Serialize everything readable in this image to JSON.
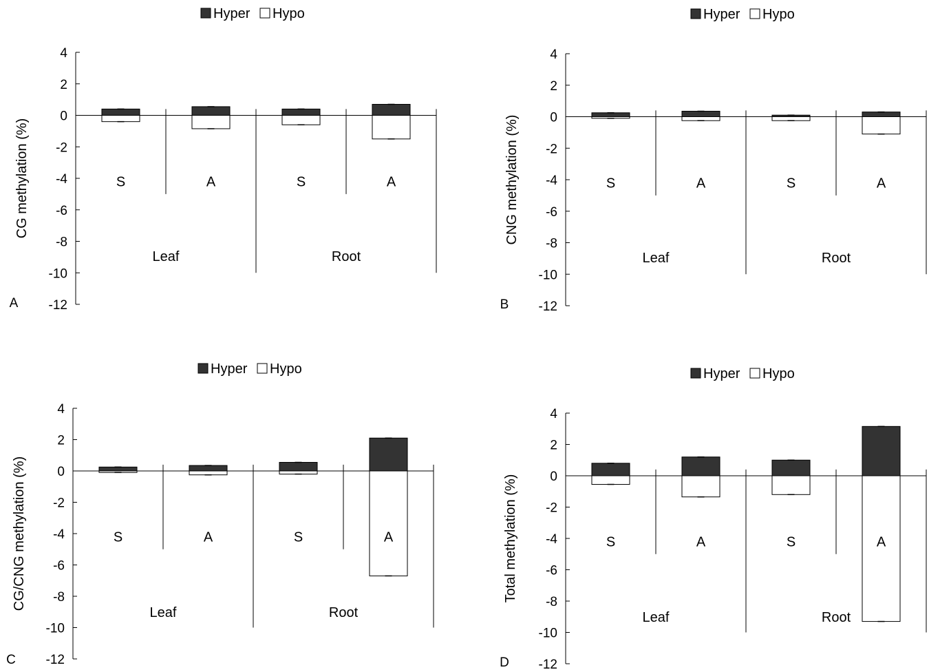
{
  "legend": {
    "hyper_label": "Hyper",
    "hypo_label": "Hypo"
  },
  "colors": {
    "hyper": "#333333",
    "hypo": "#ffffff",
    "axis": "#000000"
  },
  "chart_data": [
    {
      "type": "bar",
      "panel_label": "A",
      "ylabel": "CG methylation (%)",
      "ylim": [
        -12,
        4
      ],
      "yticks": [
        4,
        2,
        0,
        -2,
        -4,
        -6,
        -8,
        -10,
        -12
      ],
      "categories": [
        "S",
        "A",
        "S",
        "A"
      ],
      "groups": [
        "Leaf",
        "Root"
      ],
      "group_of_category": [
        0,
        0,
        1,
        1
      ],
      "series": [
        {
          "name": "Hyper",
          "values": [
            0.4,
            0.55,
            0.4,
            0.7
          ]
        },
        {
          "name": "Hypo",
          "values": [
            -0.4,
            -0.85,
            -0.6,
            -1.5
          ]
        }
      ],
      "legend_position": "top"
    },
    {
      "type": "bar",
      "panel_label": "B",
      "ylabel": "CNG methylation (%)",
      "ylim": [
        -12,
        4
      ],
      "yticks": [
        4,
        2,
        0,
        -2,
        -4,
        -6,
        -8,
        -10,
        -12
      ],
      "categories": [
        "S",
        "A",
        "S",
        "A"
      ],
      "groups": [
        "Leaf",
        "Root"
      ],
      "group_of_category": [
        0,
        0,
        1,
        1
      ],
      "series": [
        {
          "name": "Hyper",
          "values": [
            0.25,
            0.35,
            0.1,
            0.3
          ]
        },
        {
          "name": "Hypo",
          "values": [
            -0.1,
            -0.25,
            -0.25,
            -1.1
          ]
        }
      ],
      "legend_position": "top"
    },
    {
      "type": "bar",
      "panel_label": "C",
      "ylabel": "CG/CNG methylation (%)",
      "ylim": [
        -12,
        4
      ],
      "yticks": [
        4,
        2,
        0,
        -2,
        -4,
        -6,
        -8,
        -10,
        -12
      ],
      "categories": [
        "S",
        "A",
        "S",
        "A"
      ],
      "groups": [
        "Leaf",
        "Root"
      ],
      "group_of_category": [
        0,
        0,
        1,
        1
      ],
      "series": [
        {
          "name": "Hyper",
          "values": [
            0.25,
            0.35,
            0.55,
            2.1
          ]
        },
        {
          "name": "Hypo",
          "values": [
            -0.1,
            -0.25,
            -0.2,
            -6.7
          ]
        }
      ],
      "legend_position": "top"
    },
    {
      "type": "bar",
      "panel_label": "D",
      "ylabel": "Total methylation (%)",
      "ylim": [
        -12,
        4
      ],
      "yticks": [
        4,
        2,
        0,
        -2,
        -4,
        -6,
        -8,
        -10,
        -12
      ],
      "categories": [
        "S",
        "A",
        "S",
        "A"
      ],
      "groups": [
        "Leaf",
        "Root"
      ],
      "group_of_category": [
        0,
        0,
        1,
        1
      ],
      "series": [
        {
          "name": "Hyper",
          "values": [
            0.8,
            1.2,
            1.0,
            3.15
          ]
        },
        {
          "name": "Hypo",
          "values": [
            -0.55,
            -1.35,
            -1.2,
            -9.3
          ]
        }
      ],
      "legend_position": "top"
    }
  ]
}
